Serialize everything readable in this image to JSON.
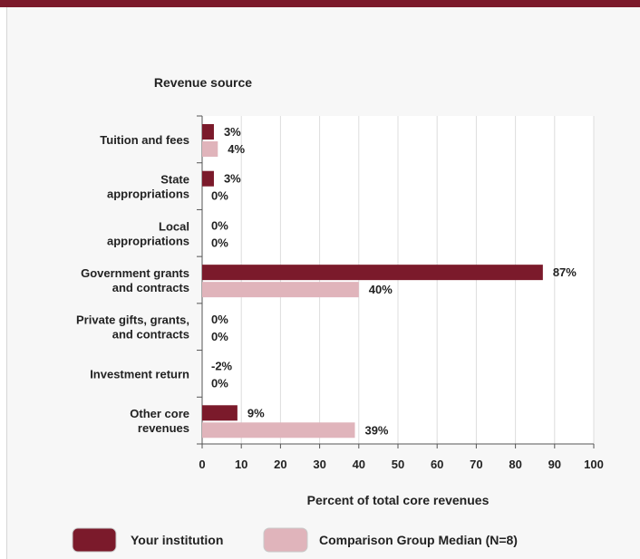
{
  "chart_data": {
    "type": "bar",
    "orientation": "horizontal",
    "category_axis_title": "Revenue source",
    "xlabel": "Percent of total core revenues",
    "xlim": [
      0,
      100
    ],
    "xticks": [
      0,
      10,
      20,
      30,
      40,
      50,
      60,
      70,
      80,
      90,
      100
    ],
    "grid": true,
    "legend_position": "bottom",
    "categories": [
      [
        "Tuition and fees"
      ],
      [
        "State",
        "appropriations"
      ],
      [
        "Local",
        "appropriations"
      ],
      [
        "Government grants",
        "and contracts"
      ],
      [
        "Private gifts, grants,",
        "and contracts"
      ],
      [
        "Investment return"
      ],
      [
        "Other core",
        "revenues"
      ]
    ],
    "series": [
      {
        "name": "Your institution",
        "color": "#7b1a2b",
        "values": [
          3,
          3,
          0,
          87,
          0,
          -2,
          9
        ],
        "labels": [
          "3%",
          "3%",
          "0%",
          "87%",
          "0%",
          "-2%",
          "9%"
        ]
      },
      {
        "name": "Comparison Group Median (N=8)",
        "color": "#e0b4bb",
        "values": [
          4,
          0,
          0,
          40,
          0,
          0,
          39
        ],
        "labels": [
          "4%",
          "0%",
          "0%",
          "40%",
          "0%",
          "0%",
          "39%"
        ]
      }
    ]
  }
}
